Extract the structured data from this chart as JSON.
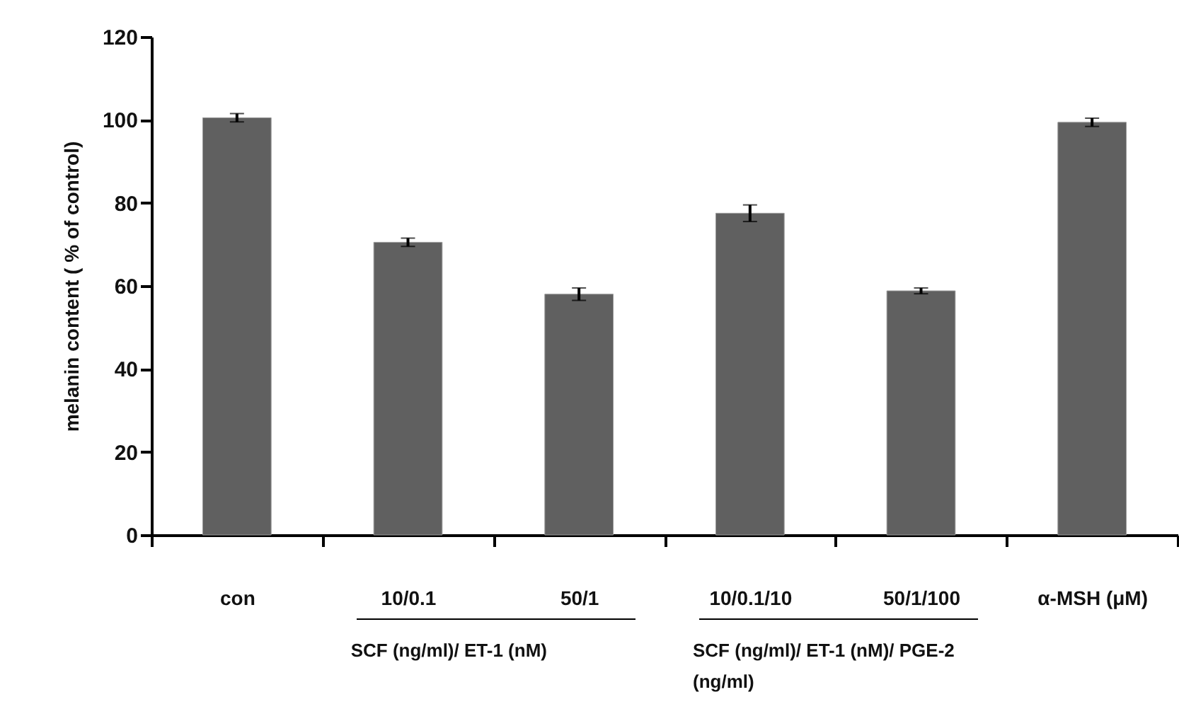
{
  "chart_data": {
    "type": "bar",
    "ylabel": "melanin content ( % of control)",
    "categories": [
      "con",
      "10/0.1",
      "50/1",
      "10/0.1/10",
      "50/1/100",
      "α-MSH (μM)"
    ],
    "values": [
      100.5,
      70.5,
      58,
      77.5,
      58.8,
      99.4
    ],
    "errors": [
      1,
      1,
      1.5,
      2,
      0.7,
      1
    ],
    "color": "#606060",
    "ylim": [
      0,
      120
    ],
    "yticks": [
      0,
      20,
      40,
      60,
      80,
      100,
      120
    ],
    "grid": false,
    "annotations": [
      "SCF (ng/ml)/ ET-1 (nM)",
      "SCF (ng/ml)/ ET-1 (nM)/ PGE-2 (ng/ml)"
    ]
  }
}
